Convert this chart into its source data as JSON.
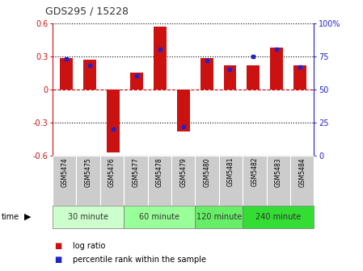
{
  "title": "GDS295 / 15228",
  "samples": [
    "GSM5474",
    "GSM5475",
    "GSM5476",
    "GSM5477",
    "GSM5478",
    "GSM5479",
    "GSM5480",
    "GSM5481",
    "GSM5482",
    "GSM5483",
    "GSM5484"
  ],
  "log_ratios": [
    0.28,
    0.27,
    -0.57,
    0.15,
    0.57,
    -0.38,
    0.28,
    0.22,
    0.22,
    0.38,
    0.22
  ],
  "percentile_ranks": [
    73,
    68,
    20,
    60,
    80,
    22,
    72,
    65,
    75,
    80,
    67
  ],
  "ylim": [
    -0.6,
    0.6
  ],
  "y2lim": [
    0,
    100
  ],
  "yticks": [
    -0.6,
    -0.3,
    0.0,
    0.3,
    0.6
  ],
  "ytick_labels": [
    "-0.6",
    "-0.3",
    "0",
    "0.3",
    "0.6"
  ],
  "y2ticks": [
    0,
    25,
    50,
    75,
    100
  ],
  "y2ticklabels": [
    "0",
    "25",
    "50",
    "75",
    "100%"
  ],
  "bar_color": "#cc1111",
  "percentile_color": "#2222cc",
  "hline_color": "#cc0000",
  "dotted_color": "#000000",
  "groups": [
    {
      "label": "30 minute",
      "start": 0,
      "end": 2,
      "color": "#ccffcc"
    },
    {
      "label": "60 minute",
      "start": 3,
      "end": 5,
      "color": "#99ff99"
    },
    {
      "label": "120 minute",
      "start": 6,
      "end": 7,
      "color": "#66ee66"
    },
    {
      "label": "240 minute",
      "start": 8,
      "end": 10,
      "color": "#33dd33"
    }
  ],
  "time_label": "time",
  "legend_bar_label": "log ratio",
  "legend_pct_label": "percentile rank within the sample",
  "bg_color": "#ffffff",
  "tick_label_bg": "#cccccc"
}
